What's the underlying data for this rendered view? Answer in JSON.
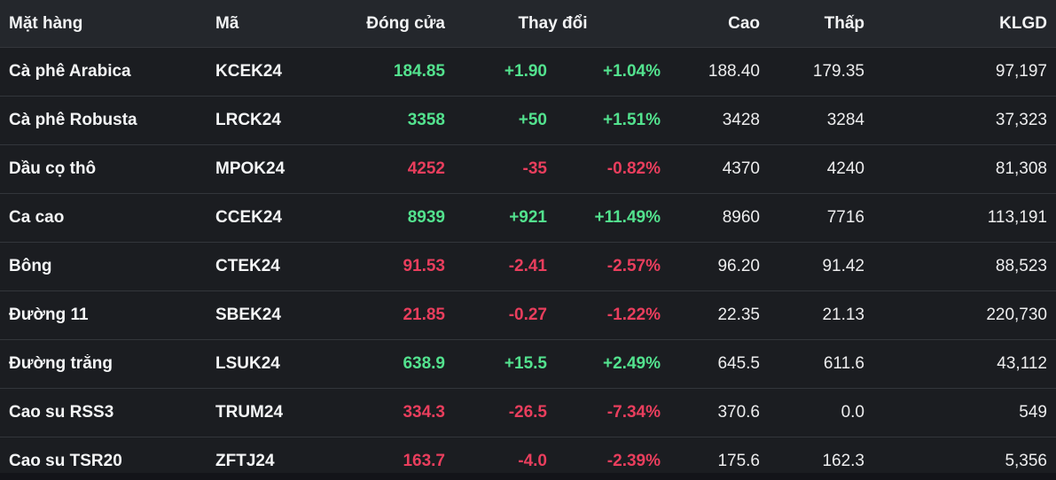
{
  "colors": {
    "up": "#53e28e",
    "down": "#e93e5d",
    "header_bg": "#24272c",
    "row_bg": "#1b1d21",
    "divider": "#33363b",
    "page_bg": "#131419"
  },
  "table": {
    "headers": {
      "commodity": "Mặt hàng",
      "code": "Mã",
      "close": "Đóng cửa",
      "change": "Thay đổi",
      "high": "Cao",
      "low": "Thấp",
      "volume": "KLGD"
    },
    "rows": [
      {
        "name": "Cà phê Arabica",
        "code": "KCEK24",
        "close": "184.85",
        "change": "+1.90",
        "change_pct": "+1.04%",
        "high": "188.40",
        "low": "179.35",
        "volume": "97,197",
        "direction": "up"
      },
      {
        "name": "Cà phê Robusta",
        "code": "LRCK24",
        "close": "3358",
        "change": "+50",
        "change_pct": "+1.51%",
        "high": "3428",
        "low": "3284",
        "volume": "37,323",
        "direction": "up"
      },
      {
        "name": "Dầu cọ thô",
        "code": "MPOK24",
        "close": "4252",
        "change": "-35",
        "change_pct": "-0.82%",
        "high": "4370",
        "low": "4240",
        "volume": "81,308",
        "direction": "down"
      },
      {
        "name": "Ca cao",
        "code": "CCEK24",
        "close": "8939",
        "change": "+921",
        "change_pct": "+11.49%",
        "high": "8960",
        "low": "7716",
        "volume": "113,191",
        "direction": "up"
      },
      {
        "name": "Bông",
        "code": "CTEK24",
        "close": "91.53",
        "change": "-2.41",
        "change_pct": "-2.57%",
        "high": "96.20",
        "low": "91.42",
        "volume": "88,523",
        "direction": "down"
      },
      {
        "name": "Đường 11",
        "code": "SBEK24",
        "close": "21.85",
        "change": "-0.27",
        "change_pct": "-1.22%",
        "high": "22.35",
        "low": "21.13",
        "volume": "220,730",
        "direction": "down"
      },
      {
        "name": "Đường trắng",
        "code": "LSUK24",
        "close": "638.9",
        "change": "+15.5",
        "change_pct": "+2.49%",
        "high": "645.5",
        "low": "611.6",
        "volume": "43,112",
        "direction": "up"
      },
      {
        "name": "Cao su RSS3",
        "code": "TRUM24",
        "close": "334.3",
        "change": "-26.5",
        "change_pct": "-7.34%",
        "high": "370.6",
        "low": "0.0",
        "volume": "549",
        "direction": "down"
      },
      {
        "name": "Cao su TSR20",
        "code": "ZFTJ24",
        "close": "163.7",
        "change": "-4.0",
        "change_pct": "-2.39%",
        "high": "175.6",
        "low": "162.3",
        "volume": "5,356",
        "direction": "down"
      }
    ]
  }
}
